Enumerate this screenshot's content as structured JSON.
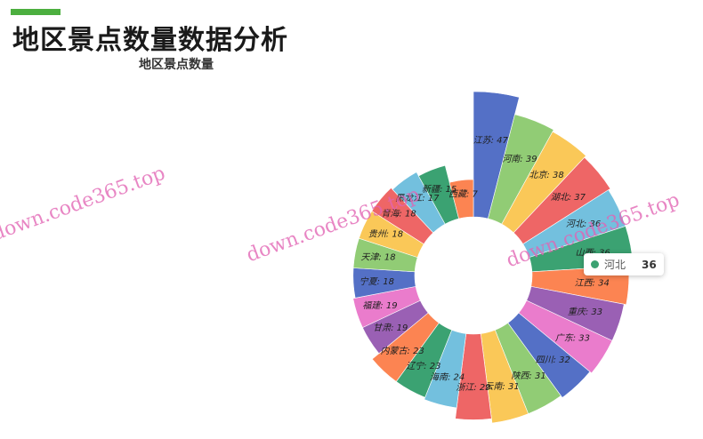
{
  "header": {
    "title": "地区景点数量数据分析",
    "accent_color": "#4caf3f"
  },
  "watermark": "down.code365.top",
  "tooltip": {
    "name": "河北",
    "value": "36",
    "color": "#3ba272"
  },
  "chart_data": {
    "type": "pie",
    "variant": "nightingale-rose",
    "title": "地区景点数量",
    "categories": [
      "江苏",
      "河南",
      "北京",
      "湖北",
      "河北",
      "山西",
      "江西",
      "重庆",
      "广东",
      "四川",
      "陕西",
      "云南",
      "浙江",
      "海南",
      "辽宁",
      "内蒙古",
      "甘肃",
      "福建",
      "宁夏",
      "天津",
      "贵州",
      "青海",
      "黑龙江",
      "新疆",
      "西藏"
    ],
    "values": [
      47,
      39,
      38,
      37,
      36,
      36,
      34,
      33,
      33,
      32,
      31,
      31,
      29,
      24,
      23,
      23,
      19,
      19,
      18,
      18,
      18,
      18,
      17,
      15,
      7
    ],
    "colors": [
      "#5470c6",
      "#91cc75",
      "#fac858",
      "#ee6666",
      "#73c0de",
      "#3ba272",
      "#fc8452",
      "#9a60b4",
      "#ea7ccc"
    ],
    "label_format": "{name}: {value}"
  }
}
